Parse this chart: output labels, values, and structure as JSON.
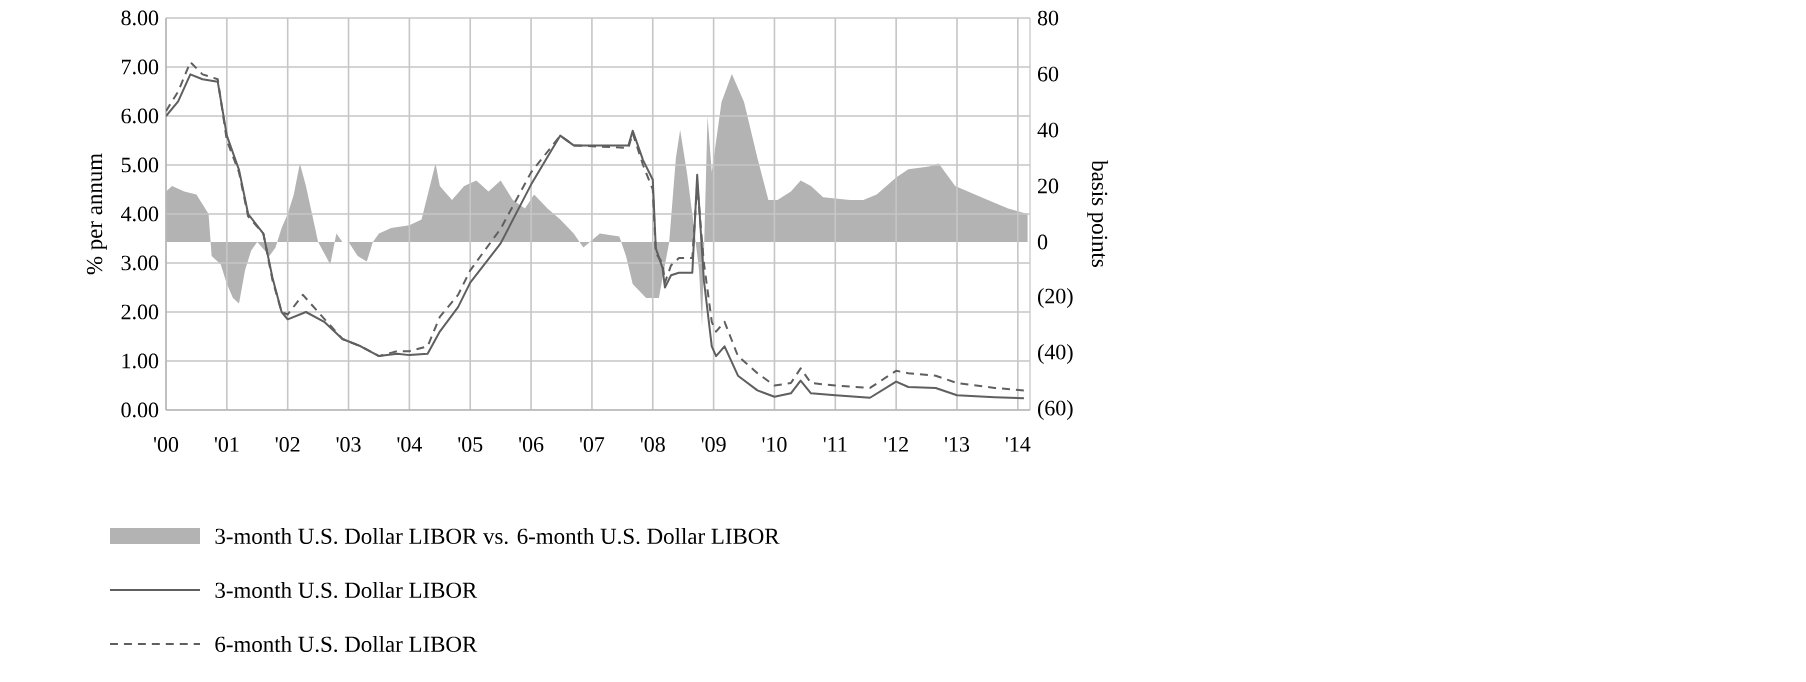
{
  "chart_data": {
    "type": "line",
    "xlim": [
      2000,
      2014.2
    ],
    "xticks": [
      {
        "value": 2000,
        "label": "'00"
      },
      {
        "value": 2001,
        "label": "'01"
      },
      {
        "value": 2002,
        "label": "'02"
      },
      {
        "value": 2003,
        "label": "'03"
      },
      {
        "value": 2004,
        "label": "'04"
      },
      {
        "value": 2005,
        "label": "'05"
      },
      {
        "value": 2006,
        "label": "'06"
      },
      {
        "value": 2007,
        "label": "'07"
      },
      {
        "value": 2008,
        "label": "'08"
      },
      {
        "value": 2009,
        "label": "'09"
      },
      {
        "value": 2010,
        "label": "'10"
      },
      {
        "value": 2011,
        "label": "'11"
      },
      {
        "value": 2012,
        "label": "'12"
      },
      {
        "value": 2013,
        "label": "'13"
      },
      {
        "value": 2014,
        "label": "'14"
      }
    ],
    "ylabel": "% per annum",
    "ylim": [
      0,
      8
    ],
    "yticks": [
      {
        "value": 0,
        "label": "0.00"
      },
      {
        "value": 1,
        "label": "1.00"
      },
      {
        "value": 2,
        "label": "2.00"
      },
      {
        "value": 3,
        "label": "3.00"
      },
      {
        "value": 4,
        "label": "4.00"
      },
      {
        "value": 5,
        "label": "5.00"
      },
      {
        "value": 6,
        "label": "6.00"
      },
      {
        "value": 7,
        "label": "7.00"
      },
      {
        "value": 8,
        "label": "8.00"
      }
    ],
    "y2label": "basis points",
    "y2lim": [
      -60,
      80
    ],
    "y2ticks": [
      80,
      60,
      40,
      20,
      0,
      {
        "value": -20,
        "label": "(20)"
      },
      {
        "value": -40,
        "label": "(40)"
      },
      {
        "value": -60,
        "label": "(60)"
      }
    ],
    "grid": true,
    "legend": "bottom",
    "marker": "none",
    "series": [
      {
        "name": "3-month U.S. Dollar LIBOR vs. 6-month U.S. Dollar LIBOR",
        "type": "area",
        "axis": "y2",
        "color": "#b3b3b3",
        "x": [
          2000.0,
          2000.1,
          2000.3,
          2000.5,
          2000.7,
          2000.75,
          2000.9,
          2001.0,
          2001.1,
          2001.2,
          2001.3,
          2001.4,
          2001.5,
          2001.7,
          2001.8,
          2001.9,
          2002.0,
          2002.1,
          2002.2,
          2002.3,
          2002.4,
          2002.5,
          2002.7,
          2002.8,
          2002.9,
          2003.0,
          2003.15,
          2003.3,
          2003.4,
          2003.5,
          2003.7,
          2004.0,
          2004.2,
          2004.43,
          2004.5,
          2004.7,
          2004.9,
          2005.1,
          2005.3,
          2005.5,
          2005.7,
          2005.9,
          2006.05,
          2006.27,
          2006.48,
          2006.7,
          2006.86,
          2007.13,
          2007.45,
          2007.56,
          2007.67,
          2007.89,
          2008.1,
          2008.27,
          2008.38,
          2008.45,
          2008.56,
          2008.65,
          2008.76,
          2008.81,
          2008.9,
          2008.97,
          2009.13,
          2009.3,
          2009.4,
          2009.5,
          2009.72,
          2009.9,
          2010.05,
          2010.27,
          2010.43,
          2010.6,
          2010.8,
          2011.24,
          2011.46,
          2011.68,
          2012.0,
          2012.2,
          2012.54,
          2012.7,
          2012.97,
          2013.4,
          2013.84,
          2014.16
        ],
        "values": [
          18,
          20,
          18,
          17,
          10,
          -5,
          -8,
          -15,
          -20,
          -22,
          -10,
          -3,
          0,
          -5,
          -2,
          5,
          10,
          17,
          28,
          20,
          10,
          0,
          -8,
          3,
          0,
          0,
          -5,
          -7,
          0,
          3,
          5,
          6,
          8,
          28,
          20,
          15,
          20,
          22,
          18,
          22,
          15,
          12,
          17,
          12,
          8,
          3,
          -2,
          3,
          2,
          -5,
          -15,
          -20,
          -20,
          0,
          30,
          40,
          25,
          10,
          -10,
          -30,
          45,
          25,
          50,
          60,
          55,
          50,
          30,
          15,
          15,
          18,
          22,
          20,
          16,
          15,
          15,
          17,
          23,
          26,
          27,
          28,
          20,
          16,
          12,
          10
        ]
      },
      {
        "name": "3-month U.S. Dollar LIBOR",
        "line_style": "solid",
        "color": "#5f5f5f",
        "x": [
          2000.0,
          2000.2,
          2000.4,
          2000.6,
          2000.85,
          2001.0,
          2001.2,
          2001.35,
          2001.6,
          2001.75,
          2001.9,
          2002.0,
          2002.3,
          2002.6,
          2002.9,
          2003.2,
          2003.5,
          2003.8,
          2004.0,
          2004.3,
          2004.5,
          2004.8,
          2005.0,
          2005.5,
          2006.0,
          2006.48,
          2006.7,
          2007.6,
          2007.67,
          2007.84,
          2008.0,
          2008.05,
          2008.16,
          2008.2,
          2008.3,
          2008.43,
          2008.65,
          2008.73,
          2008.84,
          2008.97,
          2009.04,
          2009.18,
          2009.4,
          2009.72,
          2010.0,
          2010.27,
          2010.43,
          2010.6,
          2011.0,
          2011.57,
          2012.0,
          2012.2,
          2012.65,
          2013.0,
          2013.62,
          2014.1
        ],
        "values": [
          6.0,
          6.3,
          6.85,
          6.75,
          6.7,
          5.6,
          4.9,
          4.0,
          3.6,
          2.7,
          2.0,
          1.85,
          2.0,
          1.8,
          1.45,
          1.3,
          1.1,
          1.15,
          1.12,
          1.15,
          1.6,
          2.1,
          2.6,
          3.4,
          4.6,
          5.6,
          5.4,
          5.4,
          5.7,
          5.1,
          4.7,
          3.3,
          2.9,
          2.5,
          2.75,
          2.8,
          2.8,
          4.8,
          2.65,
          1.3,
          1.1,
          1.3,
          0.7,
          0.4,
          0.27,
          0.34,
          0.6,
          0.34,
          0.3,
          0.25,
          0.58,
          0.47,
          0.45,
          0.3,
          0.26,
          0.24
        ]
      },
      {
        "name": "6-month U.S. Dollar LIBOR",
        "line_style": "dashed",
        "color": "#5f5f5f",
        "x": [
          2000.0,
          2000.2,
          2000.4,
          2000.6,
          2000.85,
          2001.0,
          2001.2,
          2001.35,
          2001.6,
          2001.75,
          2001.9,
          2002.0,
          2002.25,
          2002.5,
          2002.9,
          2003.2,
          2003.5,
          2003.8,
          2004.0,
          2004.3,
          2004.5,
          2004.8,
          2005.0,
          2005.5,
          2006.0,
          2006.48,
          2006.7,
          2007.6,
          2007.67,
          2007.84,
          2008.0,
          2008.05,
          2008.16,
          2008.2,
          2008.3,
          2008.43,
          2008.65,
          2008.73,
          2008.84,
          2008.97,
          2009.04,
          2009.18,
          2009.4,
          2009.72,
          2010.0,
          2010.27,
          2010.43,
          2010.6,
          2011.0,
          2011.57,
          2012.0,
          2012.2,
          2012.65,
          2013.0,
          2013.62,
          2014.1
        ],
        "values": [
          6.1,
          6.5,
          7.1,
          6.85,
          6.75,
          5.5,
          4.85,
          3.95,
          3.6,
          2.65,
          2.0,
          1.95,
          2.35,
          2.0,
          1.45,
          1.3,
          1.1,
          1.2,
          1.2,
          1.3,
          1.9,
          2.35,
          2.85,
          3.7,
          4.85,
          5.6,
          5.4,
          5.35,
          5.65,
          5.0,
          4.5,
          3.2,
          3.0,
          2.6,
          2.95,
          3.1,
          3.1,
          4.6,
          3.0,
          1.8,
          1.6,
          1.8,
          1.1,
          0.75,
          0.5,
          0.55,
          0.85,
          0.55,
          0.5,
          0.45,
          0.8,
          0.75,
          0.7,
          0.55,
          0.45,
          0.4
        ]
      }
    ]
  }
}
